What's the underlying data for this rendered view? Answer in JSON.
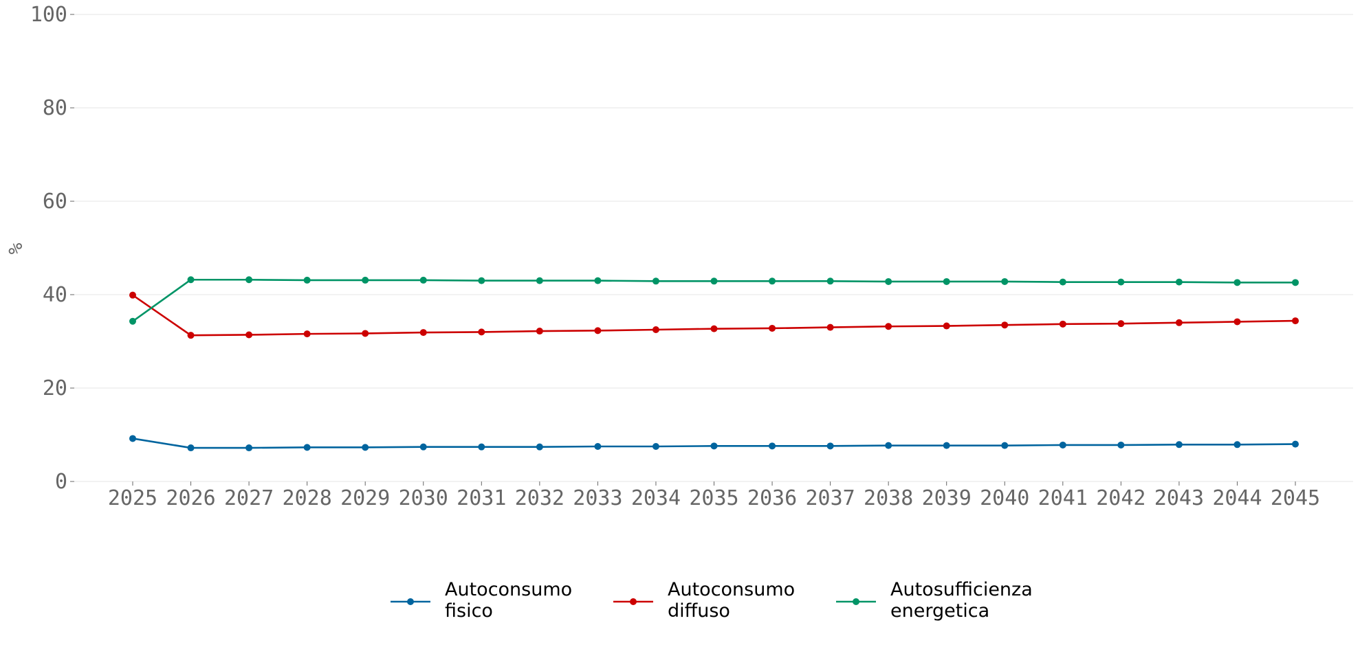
{
  "chart_data": {
    "type": "line",
    "ylabel": "%",
    "xlabel": "",
    "ylim": [
      0,
      100
    ],
    "yticks": [
      "0",
      "20",
      "40",
      "60",
      "80",
      "100"
    ],
    "grid": "horizontal",
    "legend_position": "bottom-center",
    "x": [
      "2025",
      "2026",
      "2027",
      "2028",
      "2029",
      "2030",
      "2031",
      "2032",
      "2033",
      "2034",
      "2035",
      "2036",
      "2037",
      "2038",
      "2039",
      "2040",
      "2041",
      "2042",
      "2043",
      "2044",
      "2045"
    ],
    "series": [
      {
        "name_lines": [
          "Autoconsumo",
          "fisico"
        ],
        "color": "#00649e",
        "values": [
          9.2,
          7.2,
          7.2,
          7.3,
          7.3,
          7.4,
          7.4,
          7.4,
          7.5,
          7.5,
          7.6,
          7.6,
          7.6,
          7.7,
          7.7,
          7.7,
          7.8,
          7.8,
          7.9,
          7.9,
          8.0
        ]
      },
      {
        "name_lines": [
          "Autoconsumo",
          "diffuso"
        ],
        "color": "#cc0000",
        "values": [
          39.9,
          31.3,
          31.4,
          31.6,
          31.7,
          31.9,
          32.0,
          32.2,
          32.3,
          32.5,
          32.7,
          32.8,
          33.0,
          33.2,
          33.3,
          33.5,
          33.7,
          33.8,
          34.0,
          34.2,
          34.4
        ]
      },
      {
        "name_lines": [
          "Autosufficienza",
          "energetica"
        ],
        "color": "#009466",
        "values": [
          34.3,
          43.2,
          43.2,
          43.1,
          43.1,
          43.1,
          43.0,
          43.0,
          43.0,
          42.9,
          42.9,
          42.9,
          42.9,
          42.8,
          42.8,
          42.8,
          42.7,
          42.7,
          42.7,
          42.6,
          42.6
        ]
      }
    ]
  }
}
